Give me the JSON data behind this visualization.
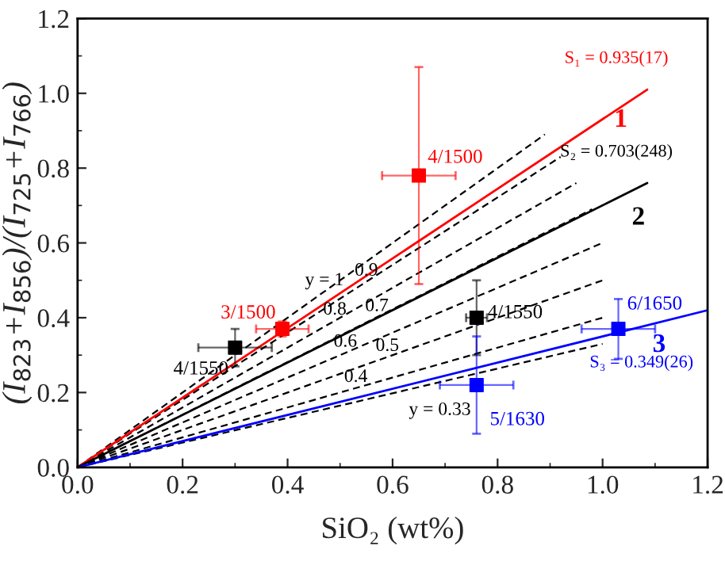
{
  "chart_data": {
    "type": "scatter",
    "xlabel": "SiO₂ (wt%)",
    "ylabel": "(I$_{823}$+I$_{856}$)/(I$_{725}$+I$_{766}$)",
    "xlim": [
      0,
      1.2
    ],
    "ylim": [
      0,
      1.2
    ],
    "xticks": [
      {
        "value": 0,
        "label": "0.0"
      },
      0.2,
      0.4,
      0.6,
      0.8,
      {
        "value": 1,
        "label": "1.0"
      },
      1.2
    ],
    "yticks": [
      {
        "value": 0,
        "label": "0.0"
      },
      0.2,
      0.4,
      0.6,
      0.8,
      {
        "value": 1,
        "label": "1.0"
      },
      1.2
    ],
    "grid": false,
    "legend": false,
    "series": [
      {
        "type": "line",
        "line_style": "dashed",
        "name": "y = 1",
        "color": "#000000",
        "x": [
          0,
          0.89
        ],
        "values": [
          0,
          0.89
        ]
      },
      {
        "type": "line",
        "line_style": "dashed",
        "name": "0.9",
        "color": "#000000",
        "x": [
          0,
          0.92
        ],
        "values": [
          0,
          0.83
        ]
      },
      {
        "type": "line",
        "line_style": "dashed",
        "name": "0.8",
        "color": "#000000",
        "x": [
          0,
          0.95
        ],
        "values": [
          0,
          0.76
        ]
      },
      {
        "type": "line",
        "line_style": "dashed",
        "name": "0.7",
        "color": "#000000",
        "x": [
          0,
          0.98
        ],
        "values": [
          0,
          0.69
        ]
      },
      {
        "type": "line",
        "line_style": "dashed",
        "name": "0.6",
        "color": "#000000",
        "x": [
          0,
          1.0
        ],
        "values": [
          0,
          0.6
        ]
      },
      {
        "type": "line",
        "line_style": "dashed",
        "name": "0.5",
        "color": "#000000",
        "x": [
          0,
          1.0
        ],
        "values": [
          0,
          0.5
        ]
      },
      {
        "type": "line",
        "line_style": "dashed",
        "name": "0.4",
        "color": "#000000",
        "x": [
          0,
          1.0
        ],
        "values": [
          0,
          0.4
        ]
      },
      {
        "type": "line",
        "line_style": "dashed",
        "name": "y = 0.33",
        "color": "#000000",
        "x": [
          0,
          1.0
        ],
        "values": [
          0,
          0.33
        ]
      },
      {
        "type": "line",
        "line_style": "solid",
        "name": "1",
        "color": "#ff0000",
        "x": [
          0,
          1.085
        ],
        "values": [
          0,
          1.01
        ]
      },
      {
        "type": "line",
        "line_style": "solid",
        "name": "2",
        "color": "#000000",
        "x": [
          0,
          1.085
        ],
        "values": [
          0,
          0.76
        ]
      },
      {
        "type": "line",
        "line_style": "solid",
        "name": "3",
        "color": "#0000ff",
        "x": [
          0,
          1.2
        ],
        "values": [
          0,
          0.42
        ]
      },
      {
        "marker": "square",
        "name": "4/1500",
        "color": "#ff0000",
        "x": [
          0.65
        ],
        "values": [
          0.78
        ],
        "errors": [
          0.29
        ],
        "xerrors": [
          0.07
        ]
      },
      {
        "marker": "square",
        "name": "3/1500",
        "color": "#ff0000",
        "x": [
          0.39
        ],
        "values": [
          0.37
        ],
        "errors": [
          0.02
        ],
        "xerrors": [
          0.05
        ]
      },
      {
        "marker": "square",
        "name": "4/1550",
        "color": "#000000",
        "x": [
          0.3
        ],
        "values": [
          0.32
        ],
        "errors": [
          0.05
        ],
        "xerrors": [
          0.07
        ]
      },
      {
        "marker": "square",
        "name": "4/1550",
        "color": "#000000",
        "x": [
          0.76
        ],
        "values": [
          0.4
        ],
        "errors": [
          0.1
        ],
        "xerrors": [
          0.02
        ]
      },
      {
        "marker": "square",
        "name": "5/1630",
        "color": "#0000ff",
        "x": [
          0.76
        ],
        "values": [
          0.22
        ],
        "errors": [
          0.13
        ],
        "xerrors": [
          0.07
        ]
      },
      {
        "marker": "square",
        "name": "6/1650",
        "color": "#0000ff",
        "x": [
          1.03
        ],
        "values": [
          0.37
        ],
        "errors": [
          0.08
        ],
        "xerrors": [
          0.07
        ]
      }
    ],
    "annotations": [
      "S₁ = 0.935(17)",
      "S₂ = 0.703(248)",
      "S₃ = 0.349(26)"
    ]
  }
}
